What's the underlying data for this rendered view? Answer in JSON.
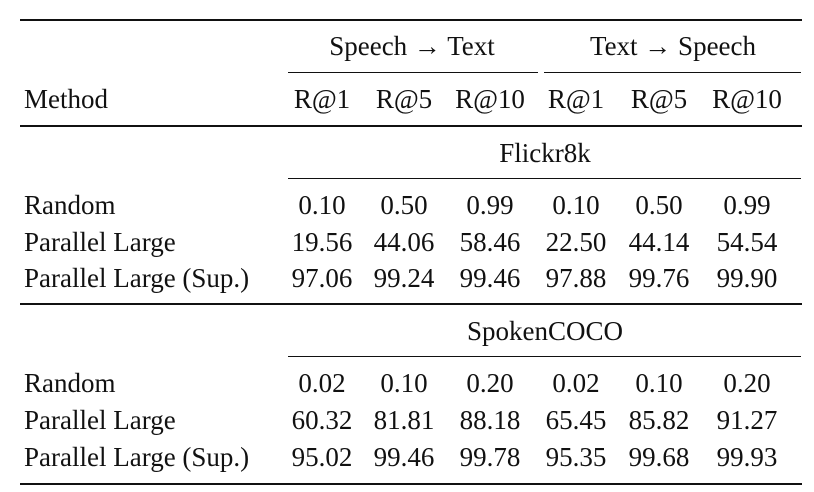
{
  "table": {
    "method_header": "Method",
    "groups": [
      "Speech → Text",
      "Text → Speech"
    ],
    "metrics": [
      "R@1",
      "R@5",
      "R@10",
      "R@1",
      "R@5",
      "R@10"
    ],
    "sections": [
      {
        "title": "Flickr8k",
        "rows": [
          {
            "method": "Random",
            "values": [
              "0.10",
              "0.50",
              "0.99",
              "0.10",
              "0.50",
              "0.99"
            ]
          },
          {
            "method": "Parallel Large",
            "values": [
              "19.56",
              "44.06",
              "58.46",
              "22.50",
              "44.14",
              "54.54"
            ]
          },
          {
            "method": "Parallel Large (Sup.)",
            "values": [
              "97.06",
              "99.24",
              "99.46",
              "97.88",
              "99.76",
              "99.90"
            ]
          }
        ]
      },
      {
        "title": "SpokenCOCO",
        "rows": [
          {
            "method": "Random",
            "values": [
              "0.02",
              "0.10",
              "0.20",
              "0.02",
              "0.10",
              "0.20"
            ]
          },
          {
            "method": "Parallel Large",
            "values": [
              "60.32",
              "81.81",
              "88.18",
              "65.45",
              "85.82",
              "91.27"
            ]
          },
          {
            "method": "Parallel Large (Sup.)",
            "values": [
              "95.02",
              "99.46",
              "99.78",
              "95.35",
              "99.68",
              "99.93"
            ]
          }
        ]
      }
    ]
  }
}
